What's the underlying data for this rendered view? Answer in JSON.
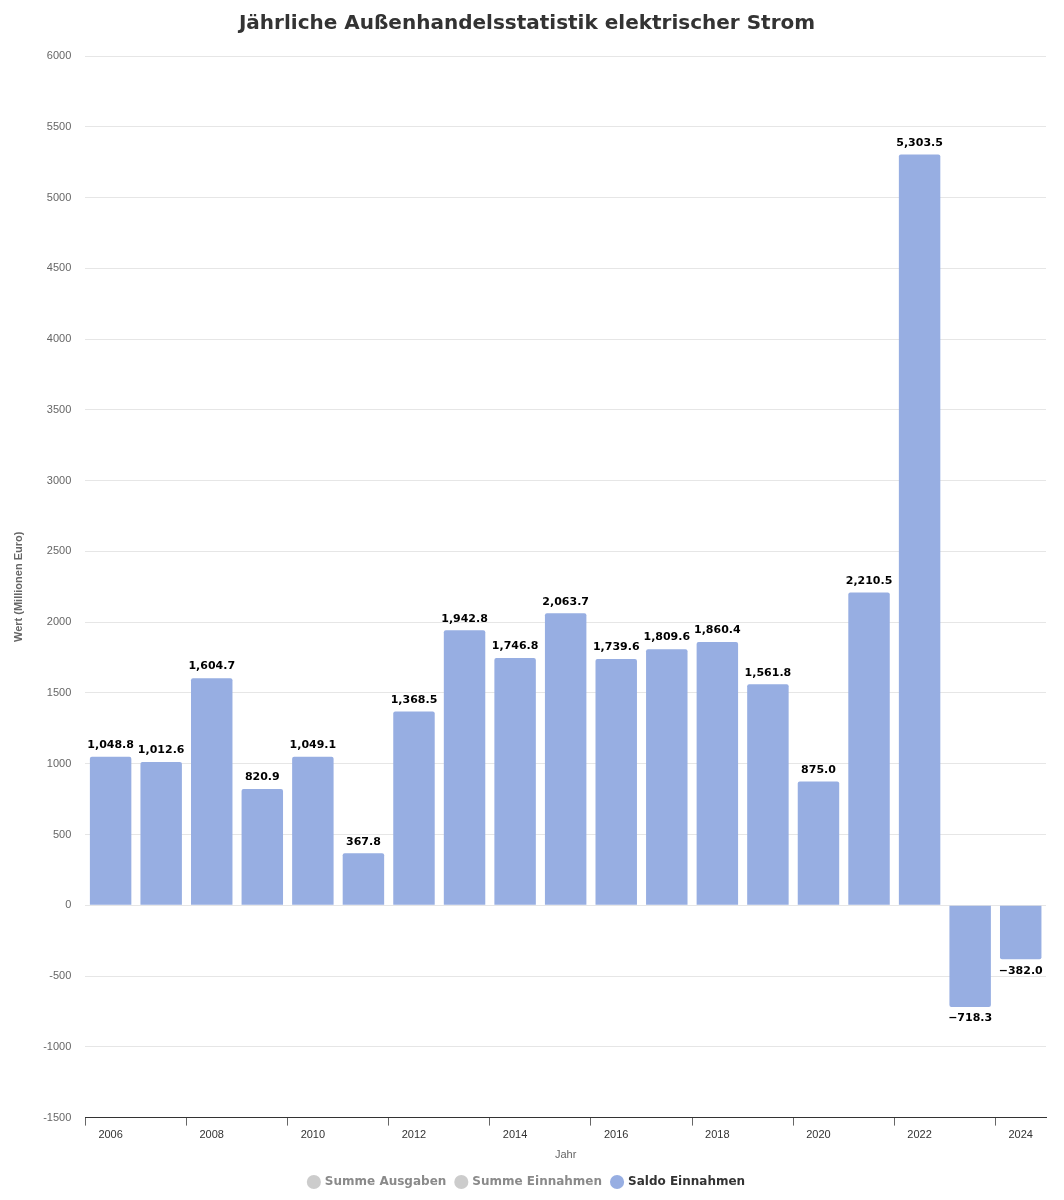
{
  "chart_data": {
    "type": "bar",
    "title": "Jährliche Außenhandelsstatistik elektrischer Strom",
    "xlabel": "Jahr",
    "ylabel": "Wert (Millionen Euro)",
    "categories": [
      "2006",
      null,
      "2008",
      null,
      "2010",
      null,
      "2012",
      null,
      "2014",
      null,
      "2016",
      null,
      "2018",
      null,
      "2020",
      null,
      "2022",
      null,
      "2024"
    ],
    "series": [
      {
        "name": "Summe Ausgaben",
        "color": "#cccccc",
        "values": [
          null,
          null,
          null,
          null,
          null,
          null,
          null,
          null,
          null,
          null,
          null,
          null,
          null,
          null,
          null,
          null,
          null,
          null,
          null
        ]
      },
      {
        "name": "Summe Einnahmen",
        "color": "#cccccc",
        "values": [
          null,
          null,
          null,
          null,
          null,
          null,
          null,
          null,
          null,
          null,
          null,
          null,
          null,
          null,
          null,
          null,
          null,
          null,
          null
        ]
      },
      {
        "name": "Saldo Einnahmen",
        "color": "#97aee2",
        "values": [
          1048.8,
          1012.6,
          1604.7,
          820.9,
          1049.1,
          367.8,
          1368.5,
          1942.8,
          1746.8,
          2063.7,
          1739.6,
          1809.6,
          1860.4,
          1561.8,
          875.0,
          2210.5,
          5303.5,
          -718.3,
          -382.0
        ],
        "value_labels": [
          "1,048.8",
          "1,012.6",
          "1,604.7",
          "820.9",
          "1,049.1",
          "367.8",
          "1,368.5",
          "1,942.8",
          "1,746.8",
          "2,063.7",
          "1,739.6",
          "1,809.6",
          "1,860.4",
          "1,561.8",
          "875.0",
          "2,210.5",
          "5,303.5",
          "−718.3",
          "−382.0"
        ]
      }
    ],
    "ylim": [
      -1500,
      6000
    ],
    "yticks": [
      -1500,
      -1000,
      -500,
      0,
      500,
      1000,
      1500,
      2000,
      2500,
      3000,
      3500,
      4000,
      4500,
      5000,
      5500,
      6000
    ],
    "grid": "y",
    "legend": "bottom"
  }
}
